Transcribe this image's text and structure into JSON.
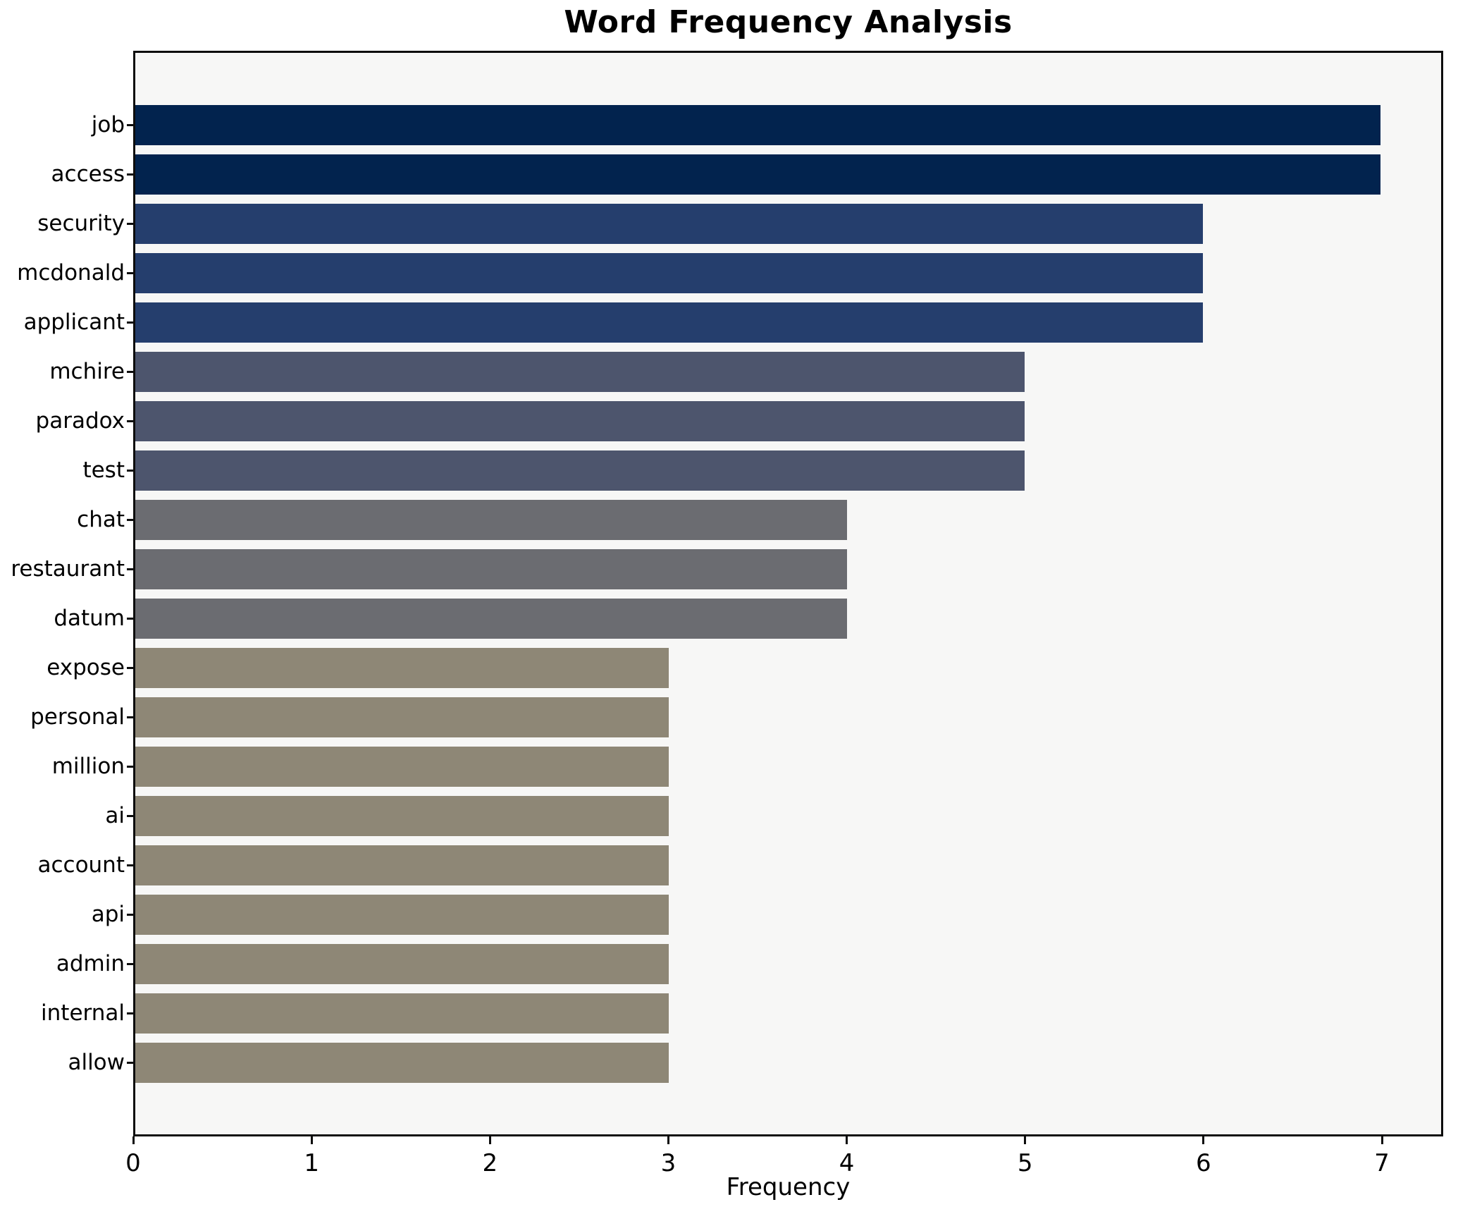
{
  "chart_data": {
    "type": "bar",
    "orientation": "horizontal",
    "title": "Word Frequency Analysis",
    "xlabel": "Frequency",
    "ylabel": "",
    "categories": [
      "job",
      "access",
      "security",
      "mcdonald",
      "applicant",
      "mchire",
      "paradox",
      "test",
      "chat",
      "restaurant",
      "datum",
      "expose",
      "personal",
      "million",
      "ai",
      "account",
      "api",
      "admin",
      "internal",
      "allow"
    ],
    "values": [
      7,
      7,
      6,
      6,
      6,
      5,
      5,
      5,
      4,
      4,
      4,
      3,
      3,
      3,
      3,
      3,
      3,
      3,
      3,
      3
    ],
    "xticks": [
      "0",
      "1",
      "2",
      "3",
      "4",
      "5",
      "6",
      "7"
    ],
    "xlim": [
      0,
      7.34
    ],
    "grid": false,
    "legend": null,
    "plot_background": "#f7f7f6",
    "figure_background": "#ffffff",
    "spine_color": "#0d0d0d",
    "bar_colors_by_value": {
      "7": "#02234e",
      "6": "#253e6d",
      "5": "#4d556d",
      "4": "#6b6c71",
      "3": "#8e8776"
    }
  }
}
